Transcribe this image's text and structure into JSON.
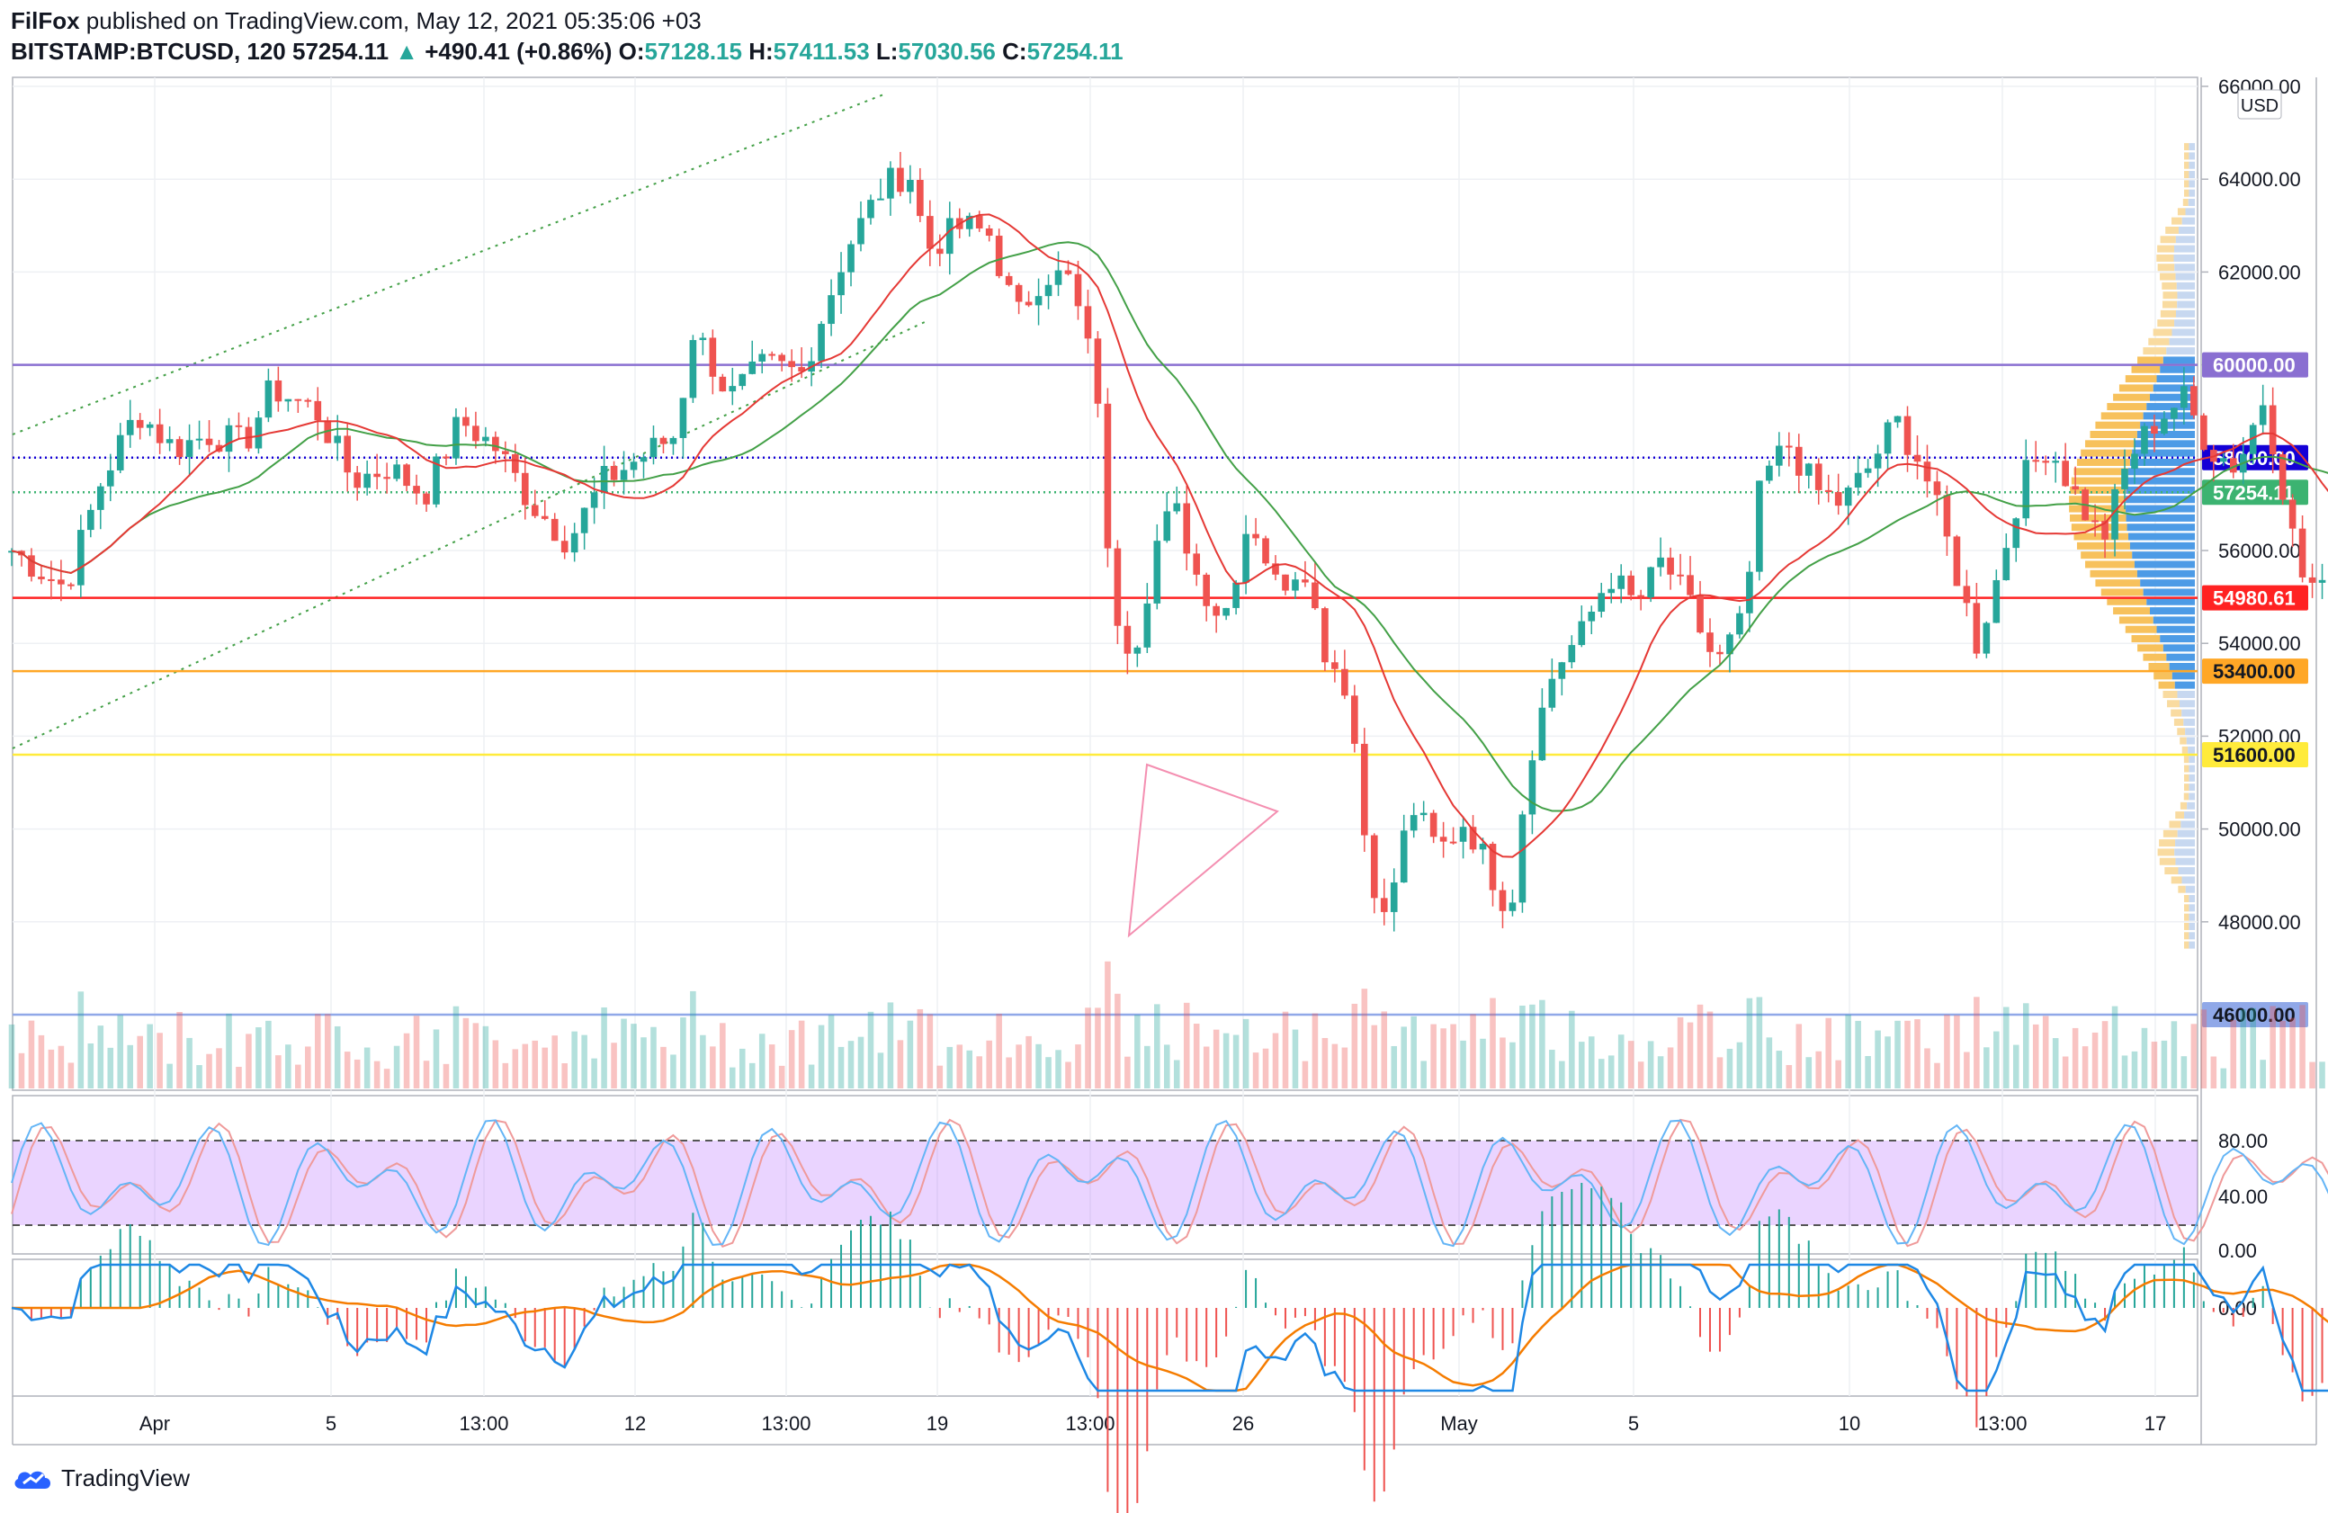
{
  "header": {
    "publisher": "FilFox",
    "published_text": "published on TradingView.com, May 12, 2021 05:35:06 +03",
    "symbol": "BITSTAMP:BTCUSD, 120",
    "last": "57254.11",
    "change_arrow": "▲",
    "change": "+490.41 (+0.86%)",
    "o_label": "O:",
    "o": "57128.15",
    "h_label": "H:",
    "h": "57411.53",
    "l_label": "L:",
    "l": "57030.56",
    "c_label": "C:",
    "c": "57254.11"
  },
  "footer": {
    "brand": "TradingView"
  },
  "chart_data": {
    "type": "candlestick",
    "currency": "USD",
    "price_axis": {
      "range": [
        45000,
        66000
      ],
      "ticks": [
        "66000.00",
        "64000.00",
        "62000.00",
        "60000.00",
        "58000.00",
        "56000.00",
        "54000.00",
        "52000.00",
        "50000.00",
        "48000.00",
        "46000.00"
      ]
    },
    "time_axis": {
      "labels": [
        "Apr",
        "5",
        "13:00",
        "12",
        "13:00",
        "19",
        "13:00",
        "26",
        "May",
        "5",
        "10",
        "13:00",
        "17"
      ]
    },
    "price_levels": [
      {
        "price": 60000,
        "label": "60000.00",
        "color": "#8a6fd1",
        "style": "solid"
      },
      {
        "price": 58000,
        "label": "58000.00",
        "color": "#1400d6",
        "style": "dotted"
      },
      {
        "price": 57254.11,
        "label": "57254.11",
        "color": "#3cb371",
        "style": "dotted"
      },
      {
        "price": 54980.61,
        "label": "54980.61",
        "color": "#ff2222",
        "style": "solid"
      },
      {
        "price": 53400,
        "label": "53400.00",
        "color": "#ffa726",
        "style": "solid"
      },
      {
        "price": 51600,
        "label": "51600.00",
        "color": "#ffeb3b",
        "style": "solid"
      },
      {
        "price": 46000,
        "label": "46000.00",
        "color": "#90a8e8",
        "style": "solid"
      }
    ],
    "close_path": [
      [
        0,
        56000
      ],
      [
        0.03,
        55200
      ],
      [
        0.05,
        57500
      ],
      [
        0.07,
        59000
      ],
      [
        0.09,
        58200
      ],
      [
        0.11,
        58500
      ],
      [
        0.13,
        58300
      ],
      [
        0.145,
        59500
      ],
      [
        0.17,
        59000
      ],
      [
        0.19,
        57500
      ],
      [
        0.21,
        57800
      ],
      [
        0.23,
        57200
      ],
      [
        0.25,
        58800
      ],
      [
        0.27,
        58200
      ],
      [
        0.29,
        57000
      ],
      [
        0.31,
        56200
      ],
      [
        0.33,
        57500
      ],
      [
        0.35,
        58000
      ],
      [
        0.37,
        58500
      ],
      [
        0.38,
        60800
      ],
      [
        0.4,
        59300
      ],
      [
        0.42,
        60000
      ],
      [
        0.44,
        59800
      ],
      [
        0.465,
        62500
      ],
      [
        0.485,
        63800
      ],
      [
        0.5,
        64200
      ],
      [
        0.51,
        62500
      ],
      [
        0.53,
        63000
      ],
      [
        0.545,
        62800
      ],
      [
        0.56,
        61000
      ],
      [
        0.575,
        62000
      ],
      [
        0.59,
        61800
      ],
      [
        0.605,
        59500
      ],
      [
        0.612,
        55000
      ],
      [
        0.625,
        53800
      ],
      [
        0.64,
        56500
      ],
      [
        0.65,
        56800
      ],
      [
        0.66,
        55500
      ],
      [
        0.675,
        54500
      ],
      [
        0.69,
        56800
      ],
      [
        0.705,
        55200
      ],
      [
        0.72,
        55800
      ],
      [
        0.73,
        54000
      ],
      [
        0.745,
        53000
      ],
      [
        0.755,
        49500
      ],
      [
        0.765,
        48000
      ],
      [
        0.78,
        50500
      ],
      [
        0.795,
        49500
      ],
      [
        0.81,
        50200
      ],
      [
        0.825,
        49000
      ],
      [
        0.835,
        48200
      ],
      [
        0.845,
        51500
      ],
      [
        0.86,
        53500
      ],
      [
        0.875,
        54200
      ],
      [
        0.89,
        55500
      ],
      [
        0.905,
        54800
      ],
      [
        0.92,
        55800
      ],
      [
        0.935,
        54800
      ],
      [
        0.95,
        53500
      ],
      [
        0.965,
        54500
      ],
      [
        0.975,
        57500
      ],
      [
        0.99,
        58300
      ],
      [
        1.005,
        57300
      ],
      [
        1.02,
        57000
      ],
      [
        1.035,
        57800
      ],
      [
        1.05,
        58800
      ],
      [
        1.065,
        57800
      ],
      [
        1.08,
        56000
      ],
      [
        1.095,
        54000
      ],
      [
        1.105,
        55200
      ],
      [
        1.12,
        57500
      ],
      [
        1.135,
        58300
      ],
      [
        1.15,
        57200
      ],
      [
        1.165,
        56200
      ],
      [
        1.18,
        58000
      ],
      [
        1.195,
        58800
      ],
      [
        1.21,
        59300
      ],
      [
        1.225,
        58200
      ],
      [
        1.24,
        57800
      ],
      [
        1.255,
        59300
      ],
      [
        1.265,
        57500
      ],
      [
        1.275,
        55500
      ],
      [
        1.29,
        55000
      ],
      [
        1.305,
        56800
      ],
      [
        1.315,
        57254
      ]
    ],
    "indicators": [
      "Volume",
      "Stochastic RSI",
      "MACD",
      "Volume Profile"
    ],
    "stoch_axis": {
      "ticks": [
        "80.00",
        "40.00",
        "0.00"
      ]
    },
    "macd_axis": {
      "ticks": [
        "0.00"
      ]
    }
  }
}
